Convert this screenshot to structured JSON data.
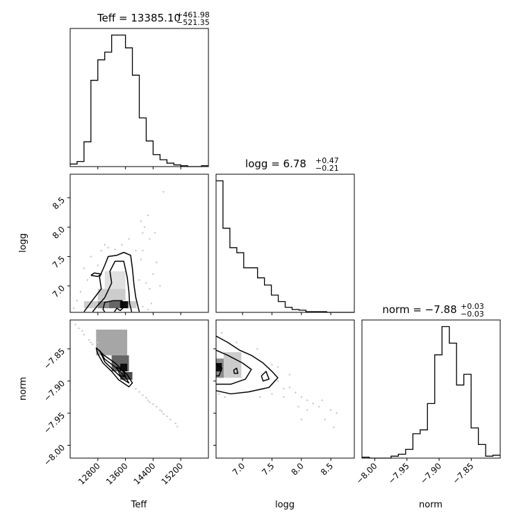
{
  "chart_data": {
    "type": "corner",
    "parameters": [
      "Teff",
      "logg",
      "norm"
    ],
    "titles": [
      {
        "base": "Teff = 13385.10",
        "sup": "+461.98",
        "sub": "−521.35"
      },
      {
        "base": "logg = 6.78",
        "sup": "+0.47",
        "sub": "−0.21"
      },
      {
        "base": "norm = −7.88",
        "sup": "+0.03",
        "sub": "−0.03"
      }
    ],
    "axis_labels": {
      "x": [
        "Teff",
        "logg",
        "norm"
      ],
      "y": [
        "logg",
        "norm"
      ]
    },
    "ranges": {
      "Teff": [
        12000,
        16000
      ],
      "logg": [
        6.55,
        8.9
      ],
      "norm": [
        -8.02,
        -7.805
      ]
    },
    "ticks": {
      "Teff": [
        {
          "v": 12800,
          "label": "12800"
        },
        {
          "v": 13600,
          "label": "13600"
        },
        {
          "v": 14400,
          "label": "14400"
        },
        {
          "v": 15200,
          "label": "15200"
        }
      ],
      "logg": [
        {
          "v": 7.0,
          "label": "7.0"
        },
        {
          "v": 7.5,
          "label": "7.5"
        },
        {
          "v": 8.0,
          "label": "8.0"
        },
        {
          "v": 8.5,
          "label": "8.5"
        }
      ],
      "norm": [
        {
          "v": -8.0,
          "label": "−8.00"
        },
        {
          "v": -7.95,
          "label": "−7.95"
        },
        {
          "v": -7.9,
          "label": "−7.90"
        },
        {
          "v": -7.85,
          "label": "−7.85"
        }
      ]
    },
    "histograms": [
      {
        "param": "Teff",
        "lo": 12000,
        "hi": 16000,
        "counts": [
          3,
          6,
          29,
          101,
          125,
          134,
          154,
          154,
          139,
          107,
          57,
          30,
          14,
          8,
          4,
          2,
          1,
          0,
          0,
          1
        ]
      },
      {
        "param": "logg",
        "lo": 6.55,
        "hi": 8.9,
        "counts": [
          183,
          117,
          90,
          83,
          62,
          62,
          48,
          38,
          24,
          15,
          7,
          4,
          3,
          1,
          1,
          1,
          0,
          0,
          0,
          0
        ]
      },
      {
        "param": "norm",
        "lo": -8.02,
        "hi": -7.805,
        "counts": [
          1,
          0,
          0,
          0,
          2,
          4,
          9,
          25,
          29,
          56,
          106,
          135,
          118,
          75,
          86,
          31,
          14,
          2,
          3
        ]
      }
    ],
    "density_cells": [
      {
        "panel": "logg-Teff",
        "x": 12800,
        "y": 6.62,
        "w": 320,
        "h": 0.12,
        "shade": 0.45
      },
      {
        "panel": "logg-Teff",
        "x": 13120,
        "y": 6.62,
        "w": 320,
        "h": 0.12,
        "shade": 0.6
      },
      {
        "panel": "logg-Teff",
        "x": 13440,
        "y": 6.62,
        "w": 240,
        "h": 0.12,
        "shade": 0.95
      },
      {
        "panel": "logg-Teff",
        "x": 12400,
        "y": 6.62,
        "w": 400,
        "h": 0.12,
        "shade": 0.2
      },
      {
        "panel": "logg-Teff",
        "x": 13680,
        "y": 6.62,
        "w": 240,
        "h": 0.12,
        "shade": 0.2
      },
      {
        "panel": "logg-Teff",
        "x": 12800,
        "y": 6.75,
        "w": 800,
        "h": 0.2,
        "shade": 0.2
      },
      {
        "panel": "logg-Teff",
        "x": 13000,
        "y": 6.95,
        "w": 600,
        "h": 0.3,
        "shade": 0.12
      },
      {
        "panel": "norm-Teff",
        "x": 12750,
        "y": -7.86,
        "w": 900,
        "h": 0.04,
        "shade": 0.35
      },
      {
        "panel": "norm-Teff",
        "x": 13200,
        "y": -7.885,
        "w": 500,
        "h": 0.025,
        "shade": 0.6
      },
      {
        "panel": "norm-Teff",
        "x": 13450,
        "y": -7.885,
        "w": 200,
        "h": 0.012,
        "shade": 0.95
      },
      {
        "panel": "norm-Teff",
        "x": 13450,
        "y": -7.898,
        "w": 350,
        "h": 0.012,
        "shade": 0.7
      },
      {
        "panel": "norm-logg",
        "x": 6.55,
        "y": -7.895,
        "w": 0.13,
        "h": 0.03,
        "shade": 0.45
      },
      {
        "panel": "norm-logg",
        "x": 6.55,
        "y": -7.885,
        "w": 0.1,
        "h": 0.013,
        "shade": 0.95
      },
      {
        "panel": "norm-logg",
        "x": 6.68,
        "y": -7.895,
        "w": 0.3,
        "h": 0.04,
        "shade": 0.2
      }
    ],
    "contours": [
      {
        "panel": "logg-Teff",
        "points": [
          [
            12400,
            6.56
          ],
          [
            12600,
            6.72
          ],
          [
            12900,
            6.95
          ],
          [
            12850,
            7.15
          ],
          [
            13000,
            7.35
          ],
          [
            13100,
            7.5
          ],
          [
            13350,
            7.52
          ],
          [
            13550,
            7.57
          ],
          [
            13750,
            7.52
          ],
          [
            13800,
            7.3
          ],
          [
            13850,
            7.0
          ],
          [
            13900,
            6.8
          ],
          [
            14000,
            6.56
          ]
        ]
      },
      {
        "panel": "logg-Teff",
        "points": [
          [
            12650,
            6.56
          ],
          [
            12800,
            6.67
          ],
          [
            13000,
            6.8
          ],
          [
            13200,
            7.05
          ],
          [
            13150,
            7.25
          ],
          [
            13300,
            7.42
          ],
          [
            13550,
            7.42
          ],
          [
            13650,
            7.15
          ],
          [
            13700,
            6.9
          ],
          [
            13720,
            6.7
          ],
          [
            13780,
            6.56
          ]
        ]
      },
      {
        "panel": "logg-Teff",
        "points": [
          [
            13280,
            6.56
          ],
          [
            13350,
            6.62
          ],
          [
            13450,
            6.58
          ],
          [
            13520,
            6.62
          ],
          [
            13500,
            6.75
          ],
          [
            13250,
            6.75
          ],
          [
            13000,
            6.72
          ],
          [
            12950,
            6.6
          ],
          [
            13000,
            6.56
          ]
        ]
      },
      {
        "panel": "logg-Teff",
        "points": [
          [
            12600,
            7.18
          ],
          [
            12800,
            7.16
          ],
          [
            12900,
            7.2
          ],
          [
            12700,
            7.22
          ],
          [
            12600,
            7.18
          ]
        ]
      },
      {
        "panel": "norm-Teff",
        "points": [
          [
            12750,
            -7.848
          ],
          [
            12980,
            -7.86
          ],
          [
            13300,
            -7.872
          ],
          [
            13650,
            -7.89
          ],
          [
            13800,
            -7.903
          ],
          [
            13700,
            -7.909
          ],
          [
            13400,
            -7.898
          ],
          [
            13200,
            -7.885
          ],
          [
            12950,
            -7.872
          ],
          [
            12800,
            -7.858
          ],
          [
            12750,
            -7.848
          ]
        ]
      },
      {
        "panel": "norm-Teff",
        "points": [
          [
            12850,
            -7.852
          ],
          [
            13000,
            -7.866
          ],
          [
            13300,
            -7.878
          ],
          [
            13600,
            -7.894
          ],
          [
            13700,
            -7.903
          ],
          [
            13550,
            -7.898
          ],
          [
            13250,
            -7.883
          ],
          [
            13000,
            -7.87
          ],
          [
            12850,
            -7.852
          ]
        ]
      },
      {
        "panel": "norm-Teff",
        "points": [
          [
            13350,
            -7.878
          ],
          [
            13550,
            -7.886
          ],
          [
            13600,
            -7.893
          ],
          [
            13450,
            -7.892
          ],
          [
            13350,
            -7.878
          ]
        ]
      },
      {
        "panel": "norm-logg",
        "points": [
          [
            6.55,
            -7.83
          ],
          [
            6.75,
            -7.84
          ],
          [
            6.95,
            -7.852
          ],
          [
            7.15,
            -7.86
          ],
          [
            7.35,
            -7.872
          ],
          [
            7.5,
            -7.885
          ],
          [
            7.6,
            -7.895
          ],
          [
            7.45,
            -7.91
          ],
          [
            7.1,
            -7.917
          ],
          [
            6.8,
            -7.92
          ],
          [
            6.55,
            -7.915
          ]
        ]
      },
      {
        "panel": "norm-logg",
        "points": [
          [
            6.55,
            -7.852
          ],
          [
            6.75,
            -7.86
          ],
          [
            7.0,
            -7.872
          ],
          [
            7.15,
            -7.882
          ],
          [
            7.05,
            -7.897
          ],
          [
            6.8,
            -7.905
          ],
          [
            6.55,
            -7.905
          ]
        ]
      },
      {
        "panel": "norm-logg",
        "points": [
          [
            6.55,
            -7.873
          ],
          [
            6.65,
            -7.88
          ],
          [
            6.6,
            -7.892
          ],
          [
            6.55,
            -7.892
          ]
        ]
      },
      {
        "panel": "norm-logg",
        "points": [
          [
            7.32,
            -7.892
          ],
          [
            7.4,
            -7.885
          ],
          [
            7.45,
            -7.897
          ],
          [
            7.35,
            -7.9
          ],
          [
            7.32,
            -7.892
          ]
        ]
      },
      {
        "panel": "norm-logg",
        "points": [
          [
            6.85,
            -7.883
          ],
          [
            6.9,
            -7.88
          ],
          [
            6.92,
            -7.888
          ],
          [
            6.86,
            -7.888
          ],
          [
            6.85,
            -7.883
          ]
        ]
      }
    ],
    "scatter_points": [
      {
        "panel": "logg-Teff",
        "points": [
          [
            14000,
            7.1
          ],
          [
            14200,
            7.05
          ],
          [
            14400,
            7.2
          ],
          [
            14100,
            7.6
          ],
          [
            14300,
            7.8
          ],
          [
            14150,
            8.0
          ],
          [
            14250,
            8.2
          ],
          [
            14100,
            7.9
          ],
          [
            14700,
            8.6
          ],
          [
            14050,
            7.45
          ],
          [
            14300,
            6.95
          ],
          [
            14350,
            6.7
          ],
          [
            14250,
            6.6
          ],
          [
            12300,
            6.9
          ],
          [
            12200,
            6.75
          ],
          [
            12400,
            7.3
          ],
          [
            12600,
            7.5
          ],
          [
            13100,
            7.65
          ],
          [
            13500,
            7.7
          ],
          [
            13900,
            7.6
          ],
          [
            12500,
            7.1
          ],
          [
            12900,
            7.6
          ],
          [
            14500,
            7.4
          ],
          [
            14450,
            7.9
          ],
          [
            13000,
            7.7
          ],
          [
            13700,
            7.8
          ],
          [
            14050,
            8.1
          ],
          [
            12800,
            7.35
          ],
          [
            14600,
            7.0
          ],
          [
            12100,
            6.62
          ],
          [
            14100,
            6.65
          ],
          [
            13300,
            7.62
          ]
        ]
      },
      {
        "panel": "norm-Teff",
        "points": [
          [
            12150,
            -7.812
          ],
          [
            12250,
            -7.818
          ],
          [
            12400,
            -7.828
          ],
          [
            12550,
            -7.836
          ],
          [
            12650,
            -7.843
          ],
          [
            14000,
            -7.917
          ],
          [
            14200,
            -7.926
          ],
          [
            14300,
            -7.933
          ],
          [
            14500,
            -7.94
          ],
          [
            14700,
            -7.951
          ],
          [
            14900,
            -7.96
          ],
          [
            15100,
            -7.971
          ],
          [
            15050,
            -7.966
          ],
          [
            14600,
            -7.945
          ],
          [
            14400,
            -7.936
          ],
          [
            14800,
            -7.955
          ],
          [
            12350,
            -7.822
          ],
          [
            12600,
            -7.84
          ],
          [
            14100,
            -7.922
          ],
          [
            13900,
            -7.912
          ],
          [
            12800,
            -7.84
          ],
          [
            14250,
            -7.93
          ],
          [
            14650,
            -7.947
          ]
        ]
      },
      {
        "panel": "norm-logg",
        "points": [
          [
            7.6,
            -7.9
          ],
          [
            7.8,
            -7.91
          ],
          [
            7.9,
            -7.918
          ],
          [
            8.0,
            -7.925
          ],
          [
            8.1,
            -7.93
          ],
          [
            8.2,
            -7.935
          ],
          [
            8.3,
            -7.94
          ],
          [
            8.5,
            -7.945
          ],
          [
            8.6,
            -7.95
          ],
          [
            7.95,
            -7.94
          ],
          [
            7.7,
            -7.912
          ],
          [
            6.7,
            -7.925
          ],
          [
            7.3,
            -7.925
          ],
          [
            7.5,
            -7.92
          ],
          [
            7.7,
            -7.925
          ],
          [
            8.1,
            -7.945
          ],
          [
            8.4,
            -7.96
          ],
          [
            8.55,
            -7.972
          ],
          [
            8.0,
            -7.96
          ],
          [
            7.5,
            -7.875
          ],
          [
            7.6,
            -7.878
          ],
          [
            7.8,
            -7.89
          ],
          [
            6.65,
            -7.825
          ],
          [
            6.9,
            -7.84
          ],
          [
            7.25,
            -7.85
          ],
          [
            8.35,
            -7.93
          ],
          [
            6.6,
            -7.92
          ]
        ]
      }
    ]
  }
}
